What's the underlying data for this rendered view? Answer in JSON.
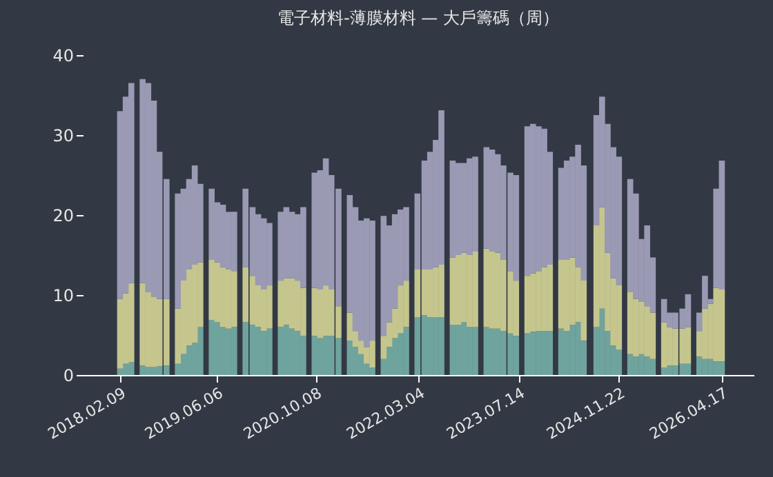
{
  "chart_data": {
    "type": "bar",
    "stacked": true,
    "title": "電子材料-薄膜材料 — 大戶籌碼（周）",
    "x": [
      "2018-02-09",
      "2018-03-09",
      "2018-04-06",
      "2018-05-04",
      "2018-06-01",
      "2018-06-29",
      "2018-07-27",
      "2018-08-24",
      "2018-09-28",
      "2018-10-26",
      "2018-11-23",
      "2018-12-21",
      "2019-01-18",
      "2019-02-15",
      "2019-03-15",
      "2019-04-12",
      "2019-05-10",
      "2019-06-07",
      "2019-07-05",
      "2019-08-02",
      "2019-08-30",
      "2019-09-27",
      "2019-10-25",
      "2019-11-29",
      "2019-12-27",
      "2020-01-24",
      "2020-02-21",
      "2020-03-20",
      "2020-04-17",
      "2020-05-15",
      "2020-06-12",
      "2020-07-10",
      "2020-08-07",
      "2020-09-04",
      "2020-10-02",
      "2020-10-30",
      "2020-11-27",
      "2020-12-25",
      "2021-01-29",
      "2021-02-26",
      "2021-03-26",
      "2021-04-23",
      "2021-05-21",
      "2021-06-18",
      "2021-07-16",
      "2021-08-13",
      "2021-09-10",
      "2021-10-08",
      "2021-11-05",
      "2021-12-03",
      "2021-12-31",
      "2022-01-28",
      "2022-02-25",
      "2022-04-01",
      "2022-04-29",
      "2022-05-27",
      "2022-06-24",
      "2022-07-22",
      "2022-08-19",
      "2022-09-16",
      "2022-10-14",
      "2022-11-11",
      "2022-12-09",
      "2023-01-06",
      "2023-02-03",
      "2023-03-03",
      "2023-03-31",
      "2023-04-28",
      "2023-06-02",
      "2023-06-30",
      "2023-07-28",
      "2023-08-25",
      "2023-09-22",
      "2023-10-20",
      "2023-11-17",
      "2023-12-15",
      "2024-01-12",
      "2024-02-09",
      "2024-03-08",
      "2024-04-05",
      "2024-05-03",
      "2024-05-31",
      "2024-06-28",
      "2024-08-02",
      "2024-08-30",
      "2024-09-27",
      "2024-10-25",
      "2024-11-22",
      "2024-12-20",
      "2025-01-17",
      "2025-02-14",
      "2025-03-14",
      "2025-04-11",
      "2025-05-09",
      "2025-06-06",
      "2025-07-04",
      "2025-08-01",
      "2025-08-29",
      "2025-10-03",
      "2025-10-31",
      "2025-11-28",
      "2025-12-26",
      "2026-01-23",
      "2026-02-20",
      "2026-03-20",
      "2026-04-17"
    ],
    "series": [
      {
        "color": "#6fa39d",
        "values": [
          0.8,
          1.4,
          1.6,
          null,
          1.2,
          1,
          1,
          1.1,
          1.2,
          null,
          1.4,
          2.6,
          3.7,
          4,
          6,
          null,
          6.9,
          6.6,
          6,
          5.8,
          6,
          null,
          6.6,
          6.3,
          6,
          5.5,
          5.8,
          null,
          6,
          6.3,
          5.8,
          5.5,
          4.9,
          null,
          4.9,
          4.6,
          4.9,
          4.9,
          4.6,
          null,
          4.3,
          3.5,
          2.6,
          1.4,
          0.9,
          null,
          2,
          3.5,
          4.6,
          5.2,
          6,
          null,
          7.2,
          7.5,
          7.2,
          7.2,
          7.2,
          null,
          6.3,
          6.3,
          6.6,
          6,
          6,
          null,
          6,
          5.8,
          5.8,
          5.5,
          5.2,
          4.9,
          null,
          5.2,
          5.4,
          5.5,
          5.5,
          5.5,
          null,
          5.8,
          5.5,
          6.3,
          6.6,
          4.3,
          null,
          6,
          8.3,
          5.5,
          3.7,
          3.2,
          null,
          2.6,
          2.3,
          2.6,
          2.3,
          2,
          null,
          0.9,
          1.2,
          1.2,
          1.4,
          1.4,
          null,
          2.3,
          2,
          2,
          1.7,
          1.7
        ]
      },
      {
        "color": "#c5c68e",
        "values": [
          8.7,
          8.8,
          9.9,
          null,
          10.3,
          9.4,
          8.8,
          8.4,
          8.3,
          null,
          6.9,
          9.2,
          9.5,
          9.8,
          8.1,
          null,
          7.5,
          7.5,
          7.5,
          7.4,
          7,
          null,
          6.9,
          6.1,
          5.2,
          5.2,
          5.4,
          null,
          5.8,
          5.8,
          6.3,
          6.3,
          6,
          null,
          6,
          6.1,
          6.3,
          5.8,
          4,
          null,
          3.5,
          2,
          1.7,
          2.1,
          3.4,
          null,
          2.9,
          3.1,
          3.7,
          6,
          5.8,
          null,
          6,
          5.7,
          6,
          6.3,
          6.6,
          null,
          8.4,
          8.7,
          8.7,
          9,
          9.5,
          null,
          9.8,
          9.7,
          9.5,
          8.9,
          7.8,
          6.9,
          null,
          7.2,
          7.3,
          7.5,
          8,
          8.3,
          null,
          8.6,
          8.9,
          8.4,
          6.9,
          7.5,
          null,
          12.7,
          12.7,
          9.8,
          8.4,
          8,
          null,
          7.8,
          7.2,
          6.6,
          6.3,
          5.8,
          null,
          5.7,
          4.8,
          4.6,
          4.4,
          4.6,
          null,
          3.2,
          6.3,
          6.9,
          9.2,
          9
        ]
      },
      {
        "color": "#9a9ab5",
        "values": [
          23.5,
          24.6,
          25,
          null,
          25.5,
          26.1,
          24.5,
          18.4,
          15,
          null,
          14.4,
          11.5,
          11.3,
          12.4,
          9.8,
          null,
          8.9,
          7.5,
          7.8,
          7.2,
          7.4,
          null,
          9.8,
          8.6,
          8.9,
          8.9,
          7.8,
          null,
          8.6,
          8.9,
          8.3,
          8.3,
          10.1,
          null,
          14.4,
          14.9,
          15.9,
          14.3,
          14.7,
          null,
          14.7,
          15.5,
          15,
          16.1,
          15,
          null,
          15,
          12.1,
          11.8,
          9.5,
          9.2,
          null,
          9.5,
          13.6,
          14.7,
          15.9,
          19.3,
          null,
          12.1,
          11.5,
          11.2,
          12.1,
          11.8,
          null,
          12.7,
          12.7,
          12.3,
          11.8,
          12.3,
          13.2,
          null,
          18.7,
          18.7,
          18.1,
          17.3,
          14.1,
          null,
          11.5,
          12.4,
          12.6,
          15.3,
          14.4,
          null,
          13.8,
          13.8,
          16.1,
          16.4,
          16.1,
          null,
          14.1,
          13.2,
          7.8,
          10.1,
          6.9,
          null,
          2.9,
          1.8,
          2,
          2.5,
          4.1,
          null,
          2.3,
          4.1,
          0.6,
          12.4,
          16.1
        ]
      }
    ],
    "xlim": [
      "2017-08-08",
      "2026-09-22"
    ],
    "xticks": [
      {
        "value": "2018-02-09",
        "label": "2018.02.09"
      },
      {
        "value": "2019-06-06",
        "label": "2019.06.06"
      },
      {
        "value": "2020-10-08",
        "label": "2020.10.08"
      },
      {
        "value": "2022-03-04",
        "label": "2022.03.04"
      },
      {
        "value": "2023-07-14",
        "label": "2023.07.14"
      },
      {
        "value": "2024-11-22",
        "label": "2024.11.22"
      },
      {
        "value": "2026-04-17",
        "label": "2026.04.17"
      }
    ],
    "ylim": [
      0,
      40
    ],
    "yticks": [
      0,
      10,
      20,
      30,
      40
    ],
    "grid": false,
    "legend": false
  }
}
